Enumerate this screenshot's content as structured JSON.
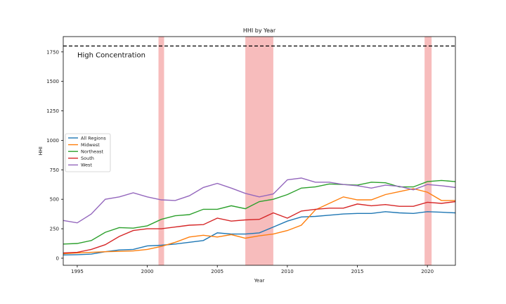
{
  "chart_data": {
    "type": "line",
    "title": "HHI by Year",
    "xlabel": "Year",
    "ylabel": "HHI",
    "xlim": [
      1994,
      2022
    ],
    "ylim": [
      -60,
      1880
    ],
    "xticks": [
      1995,
      2000,
      2005,
      2010,
      2015,
      2020
    ],
    "yticks": [
      0,
      250,
      500,
      750,
      1000,
      1250,
      1500,
      1750
    ],
    "grid": false,
    "legend": "center-left",
    "threshold": {
      "value": 1800,
      "label": "High Concentration",
      "color": "#000000"
    },
    "shaded_periods": [
      {
        "start": 2000.8,
        "end": 2001.2
      },
      {
        "start": 2007.0,
        "end": 2009.0
      },
      {
        "start": 2019.8,
        "end": 2020.3
      }
    ],
    "shade_color": "#f4a0a0",
    "x": [
      1994,
      1995,
      1996,
      1997,
      1998,
      1999,
      2000,
      2001,
      2002,
      2003,
      2004,
      2005,
      2006,
      2007,
      2008,
      2009,
      2010,
      2011,
      2012,
      2013,
      2014,
      2015,
      2016,
      2017,
      2018,
      2019,
      2020,
      2021,
      2022
    ],
    "series": [
      {
        "name": "All Regions",
        "color": "#1f77b4",
        "values": [
          28,
          30,
          35,
          55,
          70,
          75,
          105,
          110,
          120,
          135,
          150,
          215,
          205,
          205,
          215,
          265,
          315,
          350,
          355,
          365,
          375,
          380,
          380,
          395,
          385,
          380,
          395,
          390,
          385
        ]
      },
      {
        "name": "Midwest",
        "color": "#ff7f0e",
        "values": [
          38,
          45,
          50,
          55,
          58,
          62,
          75,
          100,
          135,
          180,
          195,
          180,
          200,
          170,
          190,
          205,
          235,
          280,
          410,
          465,
          520,
          495,
          495,
          540,
          565,
          590,
          560,
          490,
          490
        ]
      },
      {
        "name": "Northeast",
        "color": "#2ca02c",
        "values": [
          120,
          125,
          150,
          220,
          260,
          255,
          275,
          330,
          360,
          370,
          415,
          415,
          445,
          420,
          480,
          500,
          540,
          595,
          605,
          630,
          625,
          620,
          645,
          640,
          605,
          605,
          650,
          660,
          650
        ]
      },
      {
        "name": "South",
        "color": "#d62728",
        "values": [
          45,
          50,
          75,
          115,
          185,
          235,
          250,
          250,
          265,
          280,
          285,
          340,
          315,
          325,
          330,
          385,
          340,
          400,
          415,
          425,
          425,
          460,
          445,
          455,
          440,
          440,
          475,
          465,
          480
        ]
      },
      {
        "name": "West",
        "color": "#9467bd",
        "values": [
          320,
          300,
          375,
          500,
          520,
          555,
          520,
          495,
          490,
          530,
          600,
          635,
          595,
          550,
          520,
          545,
          665,
          680,
          645,
          645,
          625,
          615,
          595,
          620,
          610,
          580,
          625,
          615,
          600
        ]
      }
    ]
  }
}
